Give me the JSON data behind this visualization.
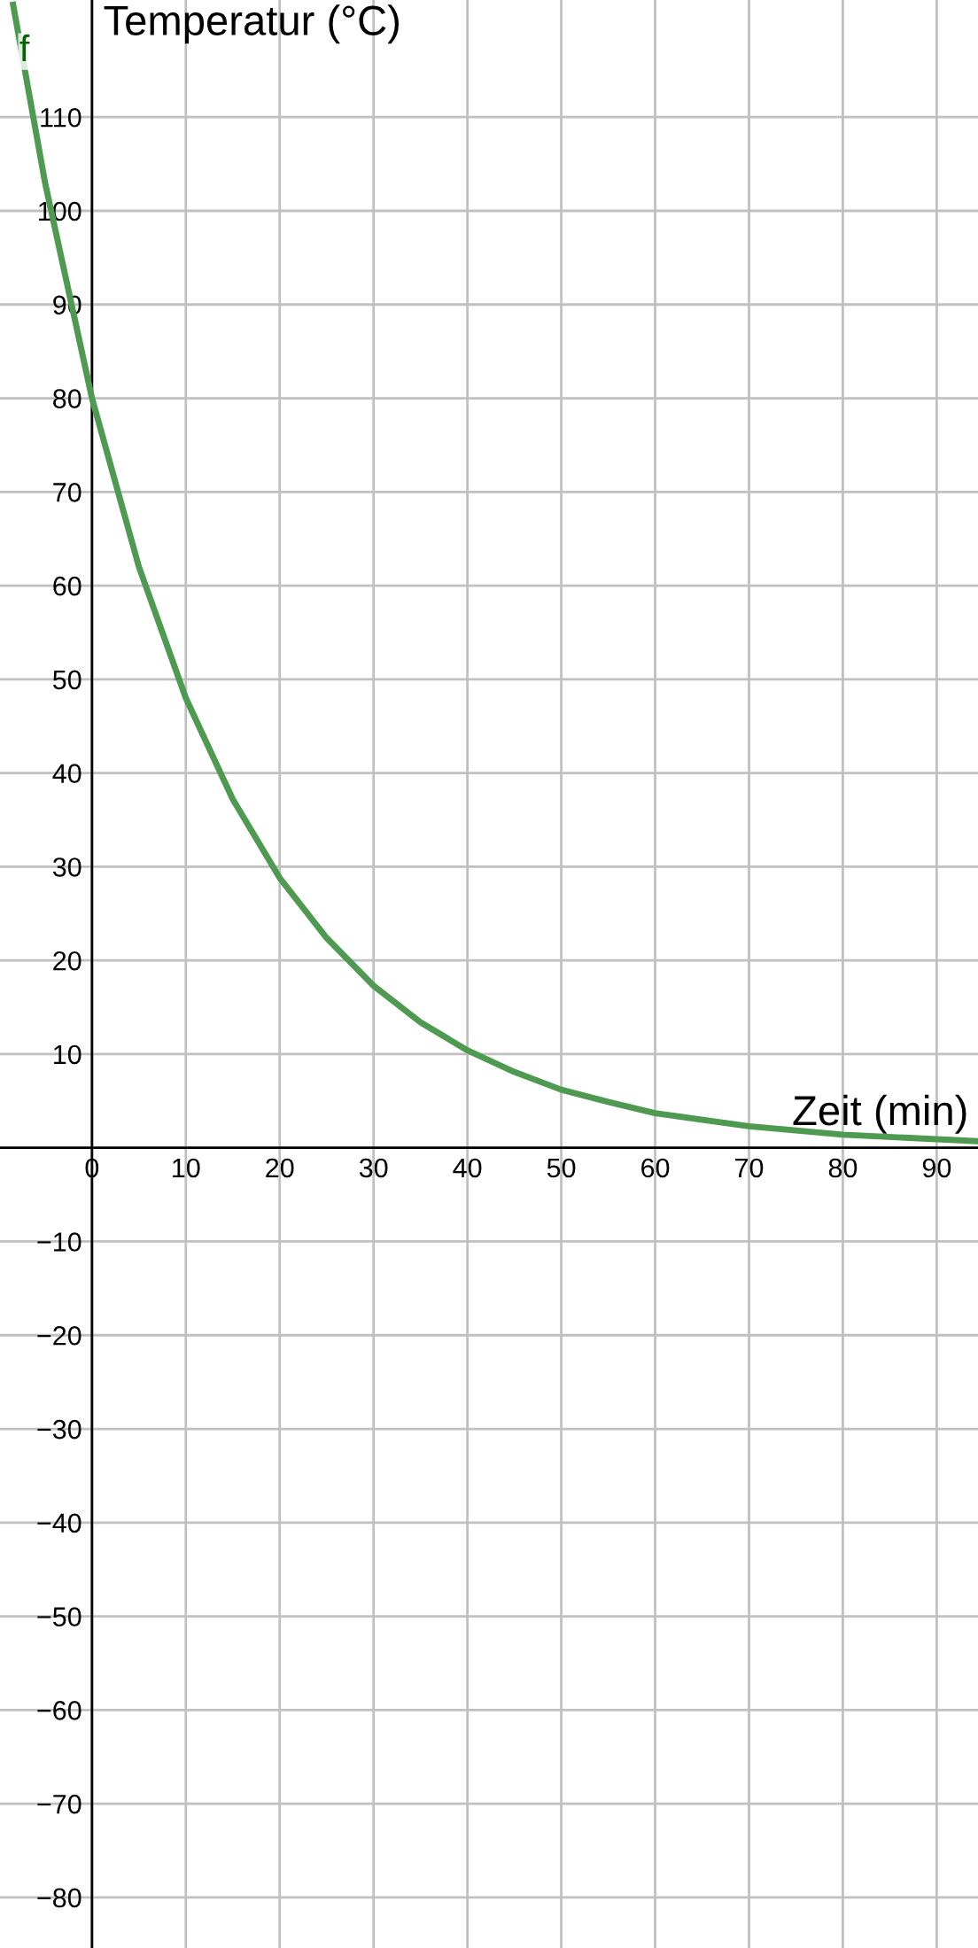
{
  "chart_data": {
    "type": "line",
    "xlabel": "Zeit (min)",
    "ylabel": "Temperatur (°C)",
    "x": [
      -8.4,
      -5,
      0,
      5,
      10,
      15,
      20,
      25,
      30,
      35,
      40,
      45,
      50,
      55,
      60,
      70,
      80,
      94.4
    ],
    "series": [
      {
        "color": "#4e9a51",
        "values": [
          122,
          103,
          80,
          62,
          48,
          37.2,
          28.8,
          22.4,
          17.3,
          13.4,
          10.4,
          8.1,
          6.2,
          4.9,
          3.7,
          2.3,
          1.4,
          0.7
        ]
      }
    ],
    "annotations": [
      {
        "text": "f",
        "x": -7.2,
        "y": 117
      }
    ],
    "xlim": [
      -9.8,
      94.4
    ],
    "ylim": [
      -85.4,
      122.5
    ],
    "xticks": [
      0,
      10,
      20,
      30,
      40,
      50,
      60,
      70,
      80,
      90
    ],
    "yticks": [
      {
        "value": -80,
        "label": "−80"
      },
      {
        "value": -70,
        "label": "−70"
      },
      {
        "value": -60,
        "label": "−60"
      },
      {
        "value": -50,
        "label": "−50"
      },
      {
        "value": -40,
        "label": "−40"
      },
      {
        "value": -30,
        "label": "−30"
      },
      {
        "value": -20,
        "label": "−20"
      },
      {
        "value": -10,
        "label": "−10"
      },
      {
        "value": 0,
        "label": null
      },
      10,
      20,
      30,
      40,
      50,
      60,
      70,
      80,
      90,
      100,
      110
    ],
    "grid": true,
    "line_style": "solid",
    "marker": "none"
  }
}
